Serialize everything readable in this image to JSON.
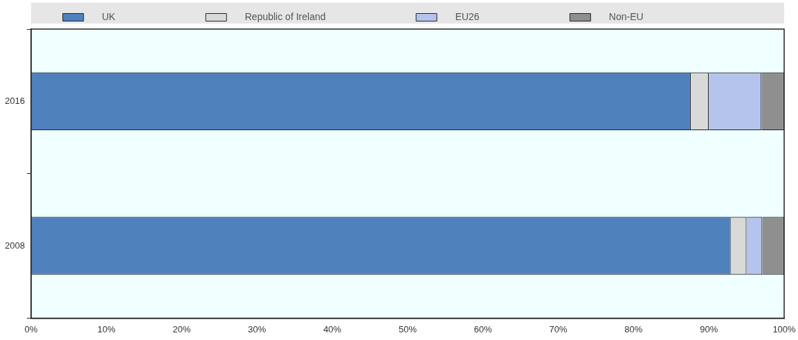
{
  "chart_data": {
    "type": "bar",
    "orientation": "horizontal",
    "stacked": true,
    "categories": [
      "2016",
      "2008"
    ],
    "series": [
      {
        "name": "UK",
        "color": "#4f81bd",
        "values": [
          87.6,
          92.9
        ]
      },
      {
        "name": "Republic of Ireland",
        "color": "#d9d9d9",
        "values": [
          2.4,
          2.1
        ]
      },
      {
        "name": "EU26",
        "color": "#b4c4ec",
        "values": [
          7.0,
          2.1
        ]
      },
      {
        "name": "Non-EU",
        "color": "#8f8f8f",
        "values": [
          3.0,
          2.9
        ]
      }
    ],
    "xlim": [
      0,
      100
    ],
    "xticks": [
      {
        "value": 0,
        "label": "0%"
      },
      {
        "value": 10,
        "label": "10%"
      },
      {
        "value": 20,
        "label": "20%"
      },
      {
        "value": 30,
        "label": "30%"
      },
      {
        "value": 40,
        "label": "40%"
      },
      {
        "value": 50,
        "label": "50%"
      },
      {
        "value": 60,
        "label": "60%"
      },
      {
        "value": 70,
        "label": "70%"
      },
      {
        "value": 80,
        "label": "80%"
      },
      {
        "value": 90,
        "label": "90%"
      },
      {
        "value": 100,
        "label": "100%"
      }
    ],
    "grid": false,
    "legend": "top"
  }
}
